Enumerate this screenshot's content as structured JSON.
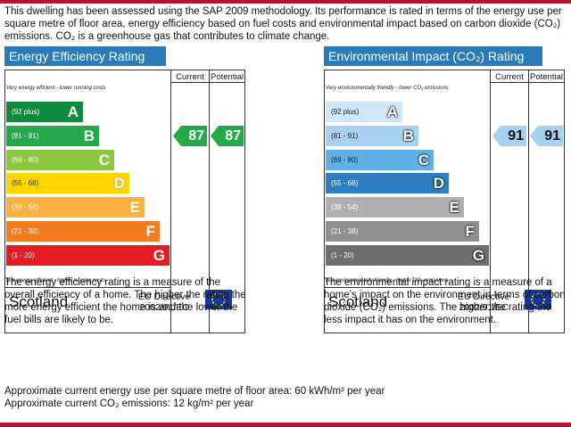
{
  "intro_text": "This dwelling has been assessed using the SAP 2009 methodology. Its performance is rated in terms of the energy use per square metre of floor area, energy efficiency based on fuel costs and environmental impact based on carbon dioxide (CO₂) emissions. CO₂ is a greenhouse gas that contributes to climate change.",
  "energy": {
    "title": "Energy Efficiency Rating",
    "col_current": "Current",
    "col_potential": "Potential",
    "top_caption": "Very energy efficient - lower running costs",
    "bottom_caption": "Not energy efficient - higher running costs",
    "bands": [
      {
        "range": "(92 plus)",
        "letter": "A",
        "color": "#108a3c"
      },
      {
        "range": "(81 - 91)",
        "letter": "B",
        "color": "#24a94a"
      },
      {
        "range": "(69 - 80)",
        "letter": "C",
        "color": "#8dc63f"
      },
      {
        "range": "(55 - 68)",
        "letter": "D",
        "color": "#ffd500"
      },
      {
        "range": "(39 - 54)",
        "letter": "E",
        "color": "#fbb040"
      },
      {
        "range": "(21 - 38)",
        "letter": "F",
        "color": "#f47b20"
      },
      {
        "range": "(1 - 20)",
        "letter": "G",
        "color": "#e31d23"
      }
    ],
    "current": "87",
    "potential": "87",
    "current_band": "B",
    "potential_band": "B",
    "region": "Scotland",
    "directive_line1": "EU Directive",
    "directive_line2": "2002/91/EC",
    "description": "The energy efficiency rating is a measure of the overall efficiency of a home. The higher the rating the more energy efficient the home is and the lower the fuel bills are likely to be."
  },
  "environment": {
    "title": "Environmental Impact (CO₂) Rating",
    "col_current": "Current",
    "col_potential": "Potential",
    "top_caption": "Very environmentally friendly - lower CO₂ emissions",
    "bottom_caption": "Not environmentally friendly - higher CO₂ emissions",
    "bands": [
      {
        "range": "(92 plus)",
        "letter": "A",
        "color": "#cfe6f7"
      },
      {
        "range": "(81 - 91)",
        "letter": "B",
        "color": "#a6d1f0"
      },
      {
        "range": "(69 - 80)",
        "letter": "C",
        "color": "#5fb0e5"
      },
      {
        "range": "(55 - 68)",
        "letter": "D",
        "color": "#2d7fc1"
      },
      {
        "range": "(39 - 54)",
        "letter": "E",
        "color": "#b0b0b0"
      },
      {
        "range": "(21 - 38)",
        "letter": "F",
        "color": "#909090"
      },
      {
        "range": "(1 - 20)",
        "letter": "G",
        "color": "#6e6e6e"
      }
    ],
    "current": "91",
    "potential": "91",
    "current_band": "B",
    "potential_band": "B",
    "region": "Scotland",
    "directive_line1": "EU Directive",
    "directive_line2": "2002/91/EC",
    "description": "The environmental impact rating is a measure of a home's impact on the environment in terms of carbon dioxide (CO₂) emissions. The higher the rating the less impact it has on the environment."
  },
  "footer_energy_use": "Approximate current energy use per square metre of floor area: 60 kWh/m² per year",
  "footer_co2": "Approximate current CO₂ emissions: 12 kg/m² per year",
  "arrow_color_energy": "#24a94a",
  "arrow_color_env": "#a6d1f0"
}
